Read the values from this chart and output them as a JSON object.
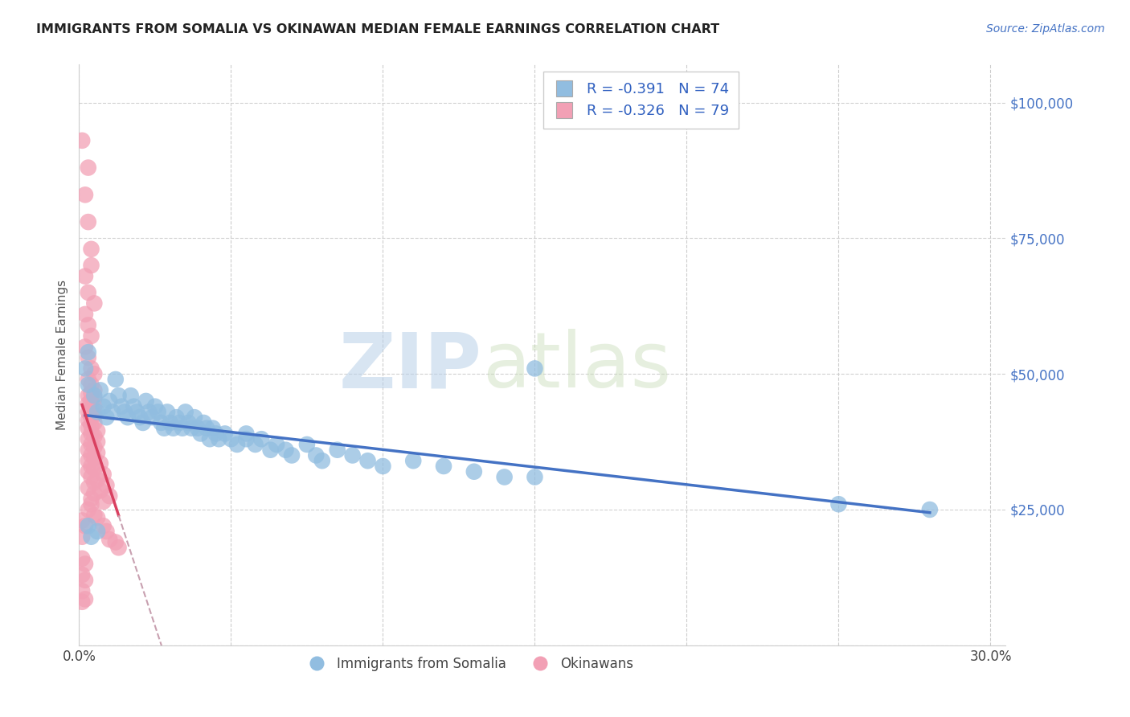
{
  "title": "IMMIGRANTS FROM SOMALIA VS OKINAWAN MEDIAN FEMALE EARNINGS CORRELATION CHART",
  "source": "Source: ZipAtlas.com",
  "ylabel": "Median Female Earnings",
  "legend_label_blue": "Immigrants from Somalia",
  "legend_label_pink": "Okinawans",
  "legend_r_blue": "-0.391",
  "legend_n_blue": "74",
  "legend_r_pink": "-0.326",
  "legend_n_pink": "79",
  "watermark_zip": "ZIP",
  "watermark_atlas": "atlas",
  "yticks": [
    0,
    25000,
    50000,
    75000,
    100000
  ],
  "ytick_labels": [
    "",
    "$25,000",
    "$50,000",
    "$75,000",
    "$100,000"
  ],
  "xlim": [
    0.0,
    0.305
  ],
  "ylim": [
    0,
    107000
  ],
  "blue_color": "#91BDE0",
  "pink_color": "#F2A0B5",
  "blue_line_color": "#4472C4",
  "pink_line_color": "#D94060",
  "pink_line_dashed_color": "#C8A0B0",
  "blue_scatter": [
    [
      0.002,
      51000
    ],
    [
      0.003,
      48000
    ],
    [
      0.005,
      46000
    ],
    [
      0.006,
      43000
    ],
    [
      0.007,
      47000
    ],
    [
      0.008,
      44000
    ],
    [
      0.009,
      42000
    ],
    [
      0.01,
      45000
    ],
    [
      0.011,
      43000
    ],
    [
      0.012,
      49000
    ],
    [
      0.013,
      46000
    ],
    [
      0.014,
      44000
    ],
    [
      0.015,
      43000
    ],
    [
      0.016,
      42000
    ],
    [
      0.017,
      46000
    ],
    [
      0.018,
      44000
    ],
    [
      0.019,
      43000
    ],
    [
      0.02,
      42000
    ],
    [
      0.021,
      41000
    ],
    [
      0.022,
      45000
    ],
    [
      0.023,
      43000
    ],
    [
      0.024,
      42000
    ],
    [
      0.025,
      44000
    ],
    [
      0.026,
      43000
    ],
    [
      0.027,
      41000
    ],
    [
      0.028,
      40000
    ],
    [
      0.029,
      43000
    ],
    [
      0.03,
      41000
    ],
    [
      0.031,
      40000
    ],
    [
      0.032,
      42000
    ],
    [
      0.033,
      41000
    ],
    [
      0.034,
      40000
    ],
    [
      0.035,
      43000
    ],
    [
      0.036,
      41000
    ],
    [
      0.037,
      40000
    ],
    [
      0.038,
      42000
    ],
    [
      0.039,
      40000
    ],
    [
      0.04,
      39000
    ],
    [
      0.041,
      41000
    ],
    [
      0.042,
      40000
    ],
    [
      0.043,
      38000
    ],
    [
      0.044,
      40000
    ],
    [
      0.045,
      39000
    ],
    [
      0.046,
      38000
    ],
    [
      0.048,
      39000
    ],
    [
      0.05,
      38000
    ],
    [
      0.052,
      37000
    ],
    [
      0.055,
      39000
    ],
    [
      0.058,
      37000
    ],
    [
      0.06,
      38000
    ],
    [
      0.063,
      36000
    ],
    [
      0.065,
      37000
    ],
    [
      0.068,
      36000
    ],
    [
      0.07,
      35000
    ],
    [
      0.075,
      37000
    ],
    [
      0.078,
      35000
    ],
    [
      0.08,
      34000
    ],
    [
      0.085,
      36000
    ],
    [
      0.09,
      35000
    ],
    [
      0.095,
      34000
    ],
    [
      0.1,
      33000
    ],
    [
      0.11,
      34000
    ],
    [
      0.12,
      33000
    ],
    [
      0.13,
      32000
    ],
    [
      0.14,
      31000
    ],
    [
      0.15,
      31000
    ],
    [
      0.003,
      22000
    ],
    [
      0.004,
      20000
    ],
    [
      0.15,
      51000
    ],
    [
      0.25,
      26000
    ],
    [
      0.28,
      25000
    ],
    [
      0.006,
      21000
    ],
    [
      0.003,
      54000
    ],
    [
      0.055,
      38000
    ]
  ],
  "pink_scatter": [
    [
      0.001,
      93000
    ],
    [
      0.003,
      88000
    ],
    [
      0.002,
      83000
    ],
    [
      0.003,
      78000
    ],
    [
      0.004,
      73000
    ],
    [
      0.004,
      70000
    ],
    [
      0.002,
      68000
    ],
    [
      0.003,
      65000
    ],
    [
      0.005,
      63000
    ],
    [
      0.002,
      61000
    ],
    [
      0.003,
      59000
    ],
    [
      0.004,
      57000
    ],
    [
      0.002,
      55000
    ],
    [
      0.003,
      53000
    ],
    [
      0.004,
      51000
    ],
    [
      0.005,
      50000
    ],
    [
      0.003,
      49000
    ],
    [
      0.004,
      48000
    ],
    [
      0.005,
      47000
    ],
    [
      0.004,
      46500
    ],
    [
      0.003,
      46000
    ],
    [
      0.005,
      45500
    ],
    [
      0.004,
      45000
    ],
    [
      0.003,
      44500
    ],
    [
      0.005,
      44000
    ],
    [
      0.004,
      43500
    ],
    [
      0.003,
      43000
    ],
    [
      0.005,
      42500
    ],
    [
      0.004,
      42000
    ],
    [
      0.003,
      41500
    ],
    [
      0.005,
      41000
    ],
    [
      0.004,
      40500
    ],
    [
      0.003,
      40000
    ],
    [
      0.006,
      39500
    ],
    [
      0.004,
      39000
    ],
    [
      0.005,
      38500
    ],
    [
      0.003,
      38000
    ],
    [
      0.006,
      37500
    ],
    [
      0.004,
      37000
    ],
    [
      0.005,
      36500
    ],
    [
      0.003,
      36000
    ],
    [
      0.006,
      35500
    ],
    [
      0.004,
      35000
    ],
    [
      0.005,
      34500
    ],
    [
      0.003,
      34000
    ],
    [
      0.007,
      33500
    ],
    [
      0.004,
      33000
    ],
    [
      0.005,
      32500
    ],
    [
      0.003,
      32000
    ],
    [
      0.008,
      31500
    ],
    [
      0.004,
      31000
    ],
    [
      0.006,
      30500
    ],
    [
      0.005,
      30000
    ],
    [
      0.009,
      29500
    ],
    [
      0.003,
      29000
    ],
    [
      0.007,
      28500
    ],
    [
      0.005,
      28000
    ],
    [
      0.01,
      27500
    ],
    [
      0.004,
      27000
    ],
    [
      0.008,
      26500
    ],
    [
      0.001,
      13000
    ],
    [
      0.002,
      12000
    ],
    [
      0.012,
      19000
    ],
    [
      0.013,
      18000
    ],
    [
      0.001,
      23000
    ],
    [
      0.002,
      22000
    ],
    [
      0.001,
      20000
    ],
    [
      0.004,
      26000
    ],
    [
      0.003,
      25000
    ],
    [
      0.005,
      24000
    ],
    [
      0.006,
      23500
    ],
    [
      0.008,
      22000
    ],
    [
      0.009,
      21000
    ],
    [
      0.01,
      19500
    ],
    [
      0.001,
      16000
    ],
    [
      0.002,
      15000
    ],
    [
      0.001,
      8000
    ],
    [
      0.002,
      8500
    ],
    [
      0.001,
      10000
    ]
  ]
}
